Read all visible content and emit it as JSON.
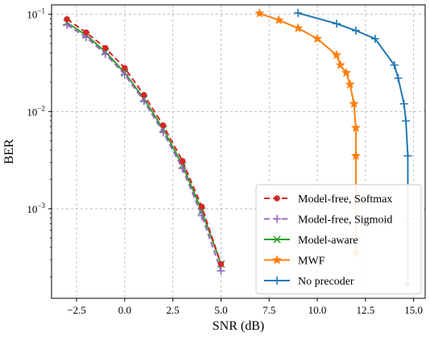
{
  "chart_data": {
    "type": "line",
    "xlabel": "SNR (dB)",
    "ylabel": "BER",
    "xlim": [
      -3.8,
      15.6
    ],
    "ylim": [
      0.00012,
      0.125
    ],
    "yscale": "log",
    "grid": true,
    "legend_position": "bottom-right",
    "x_ticks": [
      {
        "value": -2.5,
        "label": "−2.5"
      },
      {
        "value": 0,
        "label": "0.0"
      },
      {
        "value": 2.5,
        "label": "2.5"
      },
      {
        "value": 5,
        "label": "5.0"
      },
      {
        "value": 7.5,
        "label": "7.5"
      },
      {
        "value": 10,
        "label": "10.0"
      },
      {
        "value": 12.5,
        "label": "12.5"
      },
      {
        "value": 15,
        "label": "15.0"
      }
    ],
    "y_ticks": [
      {
        "value": 0.1,
        "base": "10",
        "exp": "−1"
      },
      {
        "value": 0.01,
        "base": "10",
        "exp": "−2"
      },
      {
        "value": 0.001,
        "base": "10",
        "exp": "−3"
      }
    ],
    "series": [
      {
        "name": "Model-free, Softmax",
        "color": "#d62728",
        "dash": "dashed",
        "marker": "circle",
        "x": [
          -3,
          -2,
          -1,
          0,
          1,
          2,
          3,
          4,
          5
        ],
        "y": [
          0.089,
          0.065,
          0.045,
          0.028,
          0.0148,
          0.0072,
          0.0031,
          0.00105,
          0.00027
        ]
      },
      {
        "name": "Model-free, Sigmoid",
        "color": "#9467bd",
        "dash": "dashed",
        "marker": "plus",
        "x": [
          -3,
          -2,
          -1,
          0,
          1,
          2,
          3,
          4,
          5
        ],
        "y": [
          0.078,
          0.058,
          0.039,
          0.024,
          0.0128,
          0.0061,
          0.0026,
          0.00085,
          0.00023
        ]
      },
      {
        "name": "Model-aware",
        "color": "#2ca02c",
        "dash": "solid",
        "marker": "x",
        "x": [
          -3,
          -2,
          -1,
          0,
          1,
          2,
          3,
          4,
          5
        ],
        "y": [
          0.082,
          0.061,
          0.041,
          0.025,
          0.0135,
          0.0066,
          0.0028,
          0.00095,
          0.00027
        ]
      },
      {
        "name": "MWF",
        "color": "#ff7f0e",
        "dash": "solid",
        "marker": "star",
        "x": [
          7,
          8,
          9,
          10,
          11,
          11.2,
          11.5,
          11.7,
          11.9,
          12.0,
          12.0,
          12.0,
          12.0
        ],
        "y": [
          0.102,
          0.087,
          0.072,
          0.056,
          0.038,
          0.03,
          0.025,
          0.019,
          0.012,
          0.0068,
          0.0035,
          0.0013,
          0.00035
        ]
      },
      {
        "name": "No precoder",
        "color": "#1f77b4",
        "dash": "solid",
        "marker": "plus",
        "x": [
          9,
          11,
          12,
          13,
          14,
          14.2,
          14.5,
          14.6,
          14.7,
          14.7,
          14.7
        ],
        "y": [
          0.103,
          0.08,
          0.068,
          0.056,
          0.03,
          0.022,
          0.012,
          0.008,
          0.0035,
          0.0008,
          0.00017
        ]
      }
    ]
  }
}
